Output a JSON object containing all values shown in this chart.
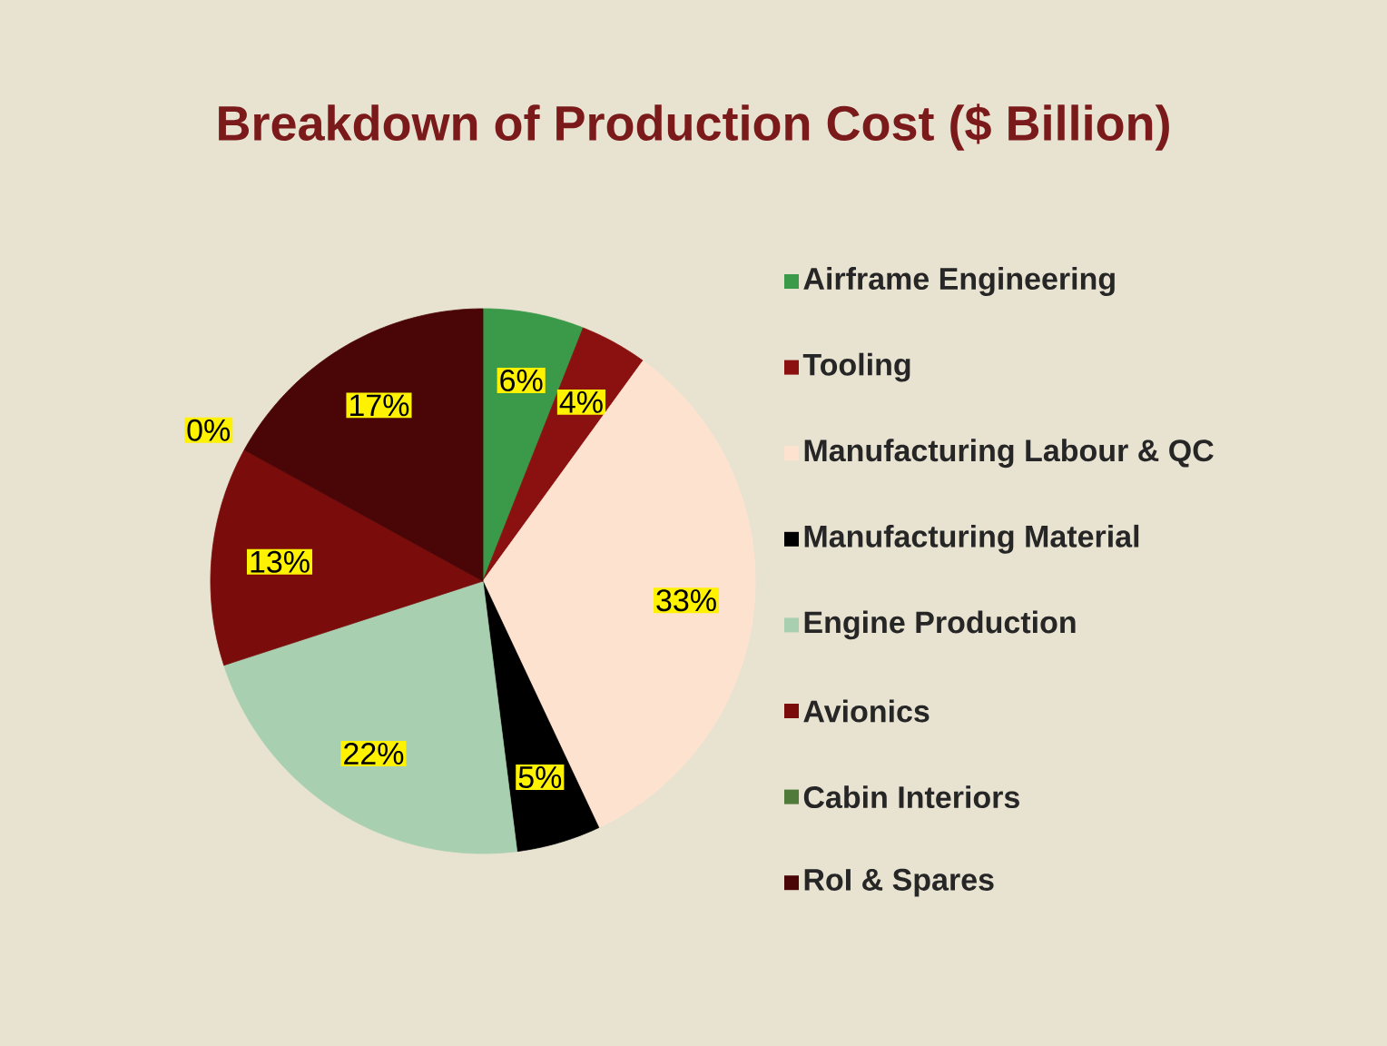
{
  "chart_data": {
    "type": "pie",
    "title": "Breakdown of Production Cost ($ Billion)",
    "categories": [
      "Airframe Engineering",
      "Tooling",
      "Manufacturing Labour & QC",
      "Manufacturing Material",
      "Engine Production",
      "Avionics",
      "Cabin Interiors",
      "RoI & Spares"
    ],
    "values": [
      6,
      4,
      33,
      5,
      22,
      13,
      0,
      17
    ],
    "colors": [
      "#3a9a4a",
      "#8b1010",
      "#fde3cf",
      "#000000",
      "#a8d0b0",
      "#7a0c0c",
      "#4f7a3a",
      "#4a0606"
    ],
    "value_labels": [
      "6%",
      "4%",
      "33%",
      "5%",
      "22%",
      "13%",
      "0%",
      "17%"
    ],
    "legend": "right"
  }
}
